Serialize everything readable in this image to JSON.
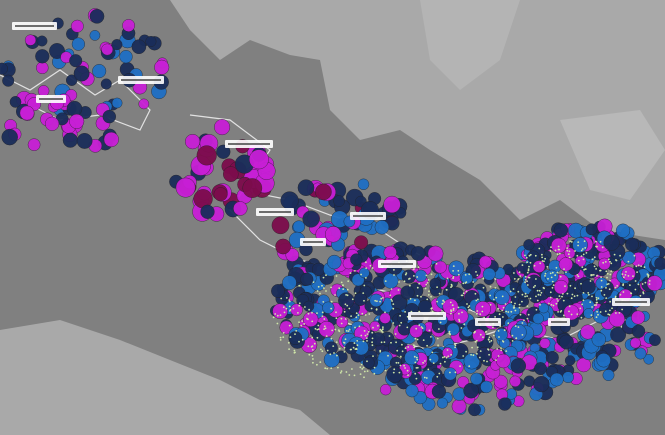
{
  "map": {
    "type": "point-density map",
    "colors": {
      "land": "#808080",
      "light_land": "#a9a9a9",
      "route": "#f2f2f2",
      "magenta": "#c81fd6",
      "navy": "#1a2d5a",
      "blue": "#1f6fc4",
      "maroon": "#7c0c4c",
      "dense_points": "#cfe6a8",
      "label_plate": "#ffffff"
    },
    "labels_legible": false,
    "place_label_count": 12
  }
}
